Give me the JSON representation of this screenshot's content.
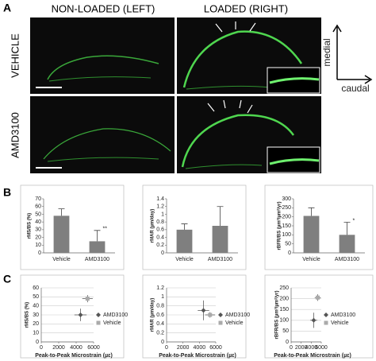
{
  "figure": {
    "panel_labels": [
      "A",
      "B",
      "C"
    ],
    "columns": [
      "NON-LOADED (LEFT)",
      "LOADED (RIGHT)"
    ],
    "rows": [
      "VEHICLE",
      "AMD3100"
    ],
    "orientation": {
      "vertical": "medial",
      "horizontal": "caudal"
    }
  },
  "chart_data": [
    {
      "type": "bar",
      "ylabel": "rMS/BS (%)",
      "categories": [
        "Vehicle",
        "AMD3100"
      ],
      "values": [
        48,
        15
      ],
      "errors": [
        9,
        14
      ],
      "annotations": [
        {
          "index": 1,
          "text": "**"
        }
      ],
      "color": "#7f7f7f",
      "ylim": [
        0,
        70
      ],
      "yticks": [
        0,
        10,
        20,
        30,
        40,
        50,
        60,
        70
      ],
      "grid": false
    },
    {
      "type": "bar",
      "ylabel": "rMAR (µm/day)",
      "categories": [
        "Vehicle",
        "AMD3100"
      ],
      "values": [
        0.6,
        0.7
      ],
      "errors": [
        0.15,
        0.5
      ],
      "annotations": [],
      "color": "#7f7f7f",
      "ylim": [
        0,
        1.4
      ],
      "yticks": [
        0,
        0.2,
        0.4,
        0.6,
        0.8,
        1,
        1.2,
        1.4
      ],
      "grid": false
    },
    {
      "type": "bar",
      "ylabel": "rBFR/BS (µm³/µm²/yr)",
      "categories": [
        "Vehicle",
        "AMD3100"
      ],
      "values": [
        205,
        100
      ],
      "errors": [
        45,
        70
      ],
      "annotations": [
        {
          "index": 1,
          "text": "*"
        }
      ],
      "color": "#7f7f7f",
      "ylim": [
        0,
        300
      ],
      "yticks": [
        0,
        50,
        100,
        150,
        200,
        250,
        300
      ],
      "grid": false
    },
    {
      "type": "scatter",
      "ylabel": "rMS/BS (%)",
      "xlabel": "Peak-to-Peak Microstrain (µε)",
      "xlim": [
        0,
        6000
      ],
      "xticks": [
        0,
        2000,
        4000,
        6000
      ],
      "ylim": [
        0,
        60
      ],
      "yticks": [
        0,
        10,
        20,
        30,
        40,
        50,
        60
      ],
      "grid": true,
      "legend": "right",
      "series": [
        {
          "name": "AMD3100",
          "color": "#555555",
          "marker": "diamond",
          "x": [
            4500
          ],
          "values": [
            30
          ],
          "x_errors": [
            700
          ],
          "y_errors": [
            7
          ]
        },
        {
          "name": "Vehicle",
          "color": "#aaaaaa",
          "marker": "square",
          "x": [
            5300
          ],
          "values": [
            48
          ],
          "x_errors": [
            600
          ],
          "y_errors": [
            4
          ]
        }
      ]
    },
    {
      "type": "scatter",
      "ylabel": "rMAR (µm/day)",
      "xlabel": "Peak-to-Peak Microstrain (µε)",
      "xlim": [
        0,
        6000
      ],
      "xticks": [
        0,
        2000,
        4000,
        6000
      ],
      "ylim": [
        0,
        1.2
      ],
      "yticks": [
        0,
        0.2,
        0.4,
        0.6,
        0.8,
        1,
        1.2
      ],
      "grid": true,
      "legend": "right",
      "series": [
        {
          "name": "AMD3100",
          "color": "#555555",
          "marker": "diamond",
          "x": [
            4500
          ],
          "values": [
            0.7
          ],
          "x_errors": [
            700
          ],
          "y_errors": [
            0.22
          ]
        },
        {
          "name": "Vehicle",
          "color": "#aaaaaa",
          "marker": "square",
          "x": [
            5300
          ],
          "values": [
            0.6
          ],
          "x_errors": [
            600
          ],
          "y_errors": [
            0.06
          ]
        }
      ]
    },
    {
      "type": "scatter",
      "ylabel": "rBFR/BS (µm³/µm²/yr)",
      "xlabel": "Peak-to-Peak Microstrain (µε)",
      "xlim": [
        0,
        6000
      ],
      "xticks": [
        0,
        2000,
        4000,
        6000
      ],
      "ylim": [
        0,
        250
      ],
      "yticks": [
        0,
        50,
        100,
        150,
        200,
        250
      ],
      "grid": true,
      "legend": "right",
      "series": [
        {
          "name": "AMD3100",
          "color": "#555555",
          "marker": "diamond",
          "x": [
            4500
          ],
          "values": [
            100
          ],
          "x_errors": [
            700
          ],
          "y_errors": [
            35
          ]
        },
        {
          "name": "Vehicle",
          "color": "#aaaaaa",
          "marker": "square",
          "x": [
            5300
          ],
          "values": [
            205
          ],
          "x_errors": [
            600
          ],
          "y_errors": [
            15
          ]
        }
      ]
    }
  ]
}
